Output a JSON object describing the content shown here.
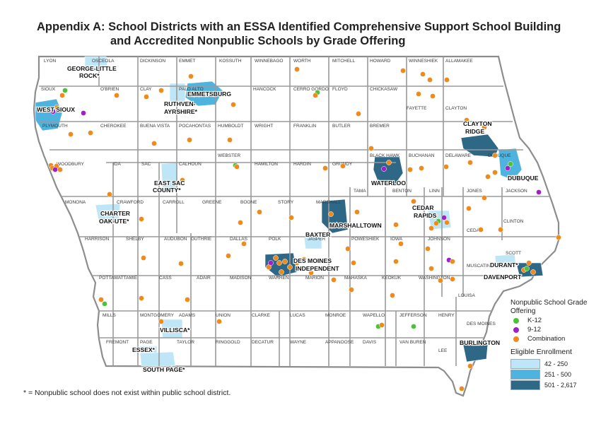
{
  "title_line1": "Appendix A:  School Districts with an ESSA Identified Comprehensive Support School Building",
  "title_line2": "and Accredited Nonpublic Schools by Grade Offering",
  "footnote": "* = Nonpublic school does not exist within public school district.",
  "legend": {
    "grade_title": "Nonpublic School Grade Offering",
    "grade_items": [
      {
        "label": "K-12",
        "color": "#4cc23a"
      },
      {
        "label": "9-12",
        "color": "#a01fc8"
      },
      {
        "label": "Combination",
        "color": "#ef8a1c"
      }
    ],
    "enroll_title": "Eligible Enrollment",
    "enroll_items": [
      {
        "label": "42 - 250",
        "color": "#bfe6f6"
      },
      {
        "label": "251 - 500",
        "color": "#4fb3e0"
      },
      {
        "label": "501 - 2,617",
        "color": "#2f6887"
      }
    ]
  },
  "counties": [
    "LYON",
    "OSCEOLA",
    "DICKINSON",
    "EMMET",
    "KOSSUTH",
    "WINNEBAGO",
    "WORTH",
    "MITCHELL",
    "HOWARD",
    "WINNESHIEK",
    "ALLAMAKEE",
    "SIOUX",
    "O'BRIEN",
    "CLAY",
    "PALO ALTO",
    "HANCOCK",
    "CERRO GORDO",
    "FLOYD",
    "CHICKASAW",
    "FAYETTE",
    "CLAYTON",
    "PLYMOUTH",
    "CHEROKEE",
    "BUENA VISTA",
    "POCAHONTAS",
    "HUMBOLDT",
    "WRIGHT",
    "FRANKLIN",
    "BUTLER",
    "BREMER",
    "WEBSTER",
    "HAMILTON",
    "HARDIN",
    "GRUNDY",
    "BLACK HAWK",
    "BUCHANAN",
    "DELAWARE",
    "DUBUQUE",
    "WOODBURY",
    "IDA",
    "SAC",
    "CALHOUN",
    "TAMA",
    "BENTON",
    "LINN",
    "JONES",
    "JACKSON",
    "MONONA",
    "CRAWFORD",
    "CARROLL",
    "GREENE",
    "BOONE",
    "STORY",
    "MARSHALL",
    "CEDAR",
    "CLINTON",
    "HARRISON",
    "SHELBY",
    "AUDUBON",
    "GUTHRIE",
    "DALLAS",
    "POLK",
    "JASPER",
    "POWESHIEK",
    "IOWA",
    "JOHNSON",
    "SCOTT",
    "MUSCATINE",
    "POTTAWATTAMIE",
    "CASS",
    "ADAIR",
    "MADISON",
    "WARREN",
    "MARION",
    "MAHASKA",
    "KEOKUK",
    "WASHINGTON",
    "LOUISA",
    "MILLS",
    "MONTGOMERY",
    "ADAMS",
    "UNION",
    "CLARKE",
    "LUCAS",
    "MONROE",
    "WAPELLO",
    "JEFFERSON",
    "HENRY",
    "DES MOINES",
    "FREMONT",
    "PAGE",
    "TAYLOR",
    "RINGGOLD",
    "DECATUR",
    "WAYNE",
    "APPANOOSE",
    "DAVIS",
    "VAN BUREN",
    "LEE"
  ],
  "districts": [
    "GEORGE-LITTLE ROCK*",
    "EMMETSBURG",
    "RUTHVEN-AYRSHIRE*",
    "WEST SIOUX",
    "CLAYTON RIDGE",
    "WATERLOO",
    "DUBUQUE",
    "EAST SAC COUNTY*",
    "CHARTER OAK-UTE*",
    "CEDAR RAPIDS",
    "MARSHALLTOWN",
    "BAXTER",
    "DES MOINES INDEPENDENT",
    "DURANT*",
    "DAVENPORT",
    "VILLISCA*",
    "ESSEX*",
    "SOUTH PAGE*",
    "BURLINGTON"
  ]
}
